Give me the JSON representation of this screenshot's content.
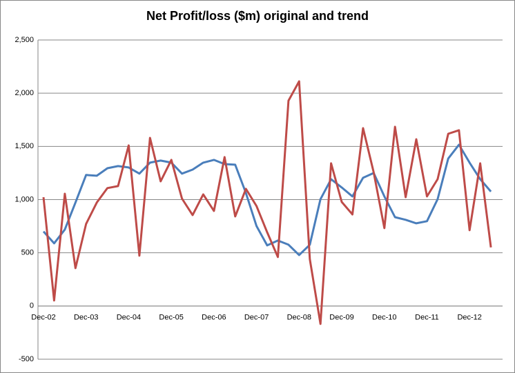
{
  "chart_data": {
    "type": "line",
    "title": "Net Profit/loss ($m) original and trend",
    "categories": [
      "Dec-02",
      null,
      null,
      null,
      "Dec-03",
      null,
      null,
      null,
      "Dec-04",
      null,
      null,
      null,
      "Dec-05",
      null,
      null,
      null,
      "Dec-06",
      null,
      null,
      null,
      "Dec-07",
      null,
      null,
      null,
      "Dec-08",
      null,
      null,
      null,
      "Dec-09",
      null,
      null,
      null,
      "Dec-10",
      null,
      null,
      null,
      "Dec-11",
      null,
      null,
      null,
      "Dec-12",
      null,
      null
    ],
    "series": [
      {
        "color": "#4a7ebb",
        "values": [
          700,
          589,
          719,
          972,
          1231,
          1224,
          1295,
          1315,
          1302,
          1244,
          1347,
          1367,
          1347,
          1244,
          1282,
          1347,
          1373,
          1334,
          1328,
          1062,
          751,
          570,
          615,
          576,
          479,
          576,
          1004,
          1192,
          1114,
          1030,
          1205,
          1250,
          1030,
          835,
          810,
          777,
          797,
          1004,
          1386,
          1516,
          1347,
          1192,
          1075
        ]
      },
      {
        "color": "#be4b48",
        "values": [
          1023,
          52,
          1055,
          356,
          771,
          972,
          1108,
          1127,
          1509,
          473,
          1580,
          1172,
          1373,
          1010,
          855,
          1049,
          894,
          1399,
          842,
          1101,
          939,
          693,
          460,
          1930,
          2111,
          440,
          -168,
          1341,
          978,
          861,
          1671,
          1256,
          732,
          1684,
          1023,
          1567,
          1030,
          1192,
          1619,
          1652,
          712,
          1341,
          551
        ]
      }
    ],
    "ylim": [
      -500,
      2500
    ],
    "yticks": [
      -500,
      0,
      500,
      {
        "value": 1000,
        "label": "1,000"
      },
      {
        "value": 1500,
        "label": "1,500"
      },
      {
        "value": 2000,
        "label": "2,000"
      },
      {
        "value": 2500,
        "label": "2,500"
      }
    ],
    "grid": true
  }
}
